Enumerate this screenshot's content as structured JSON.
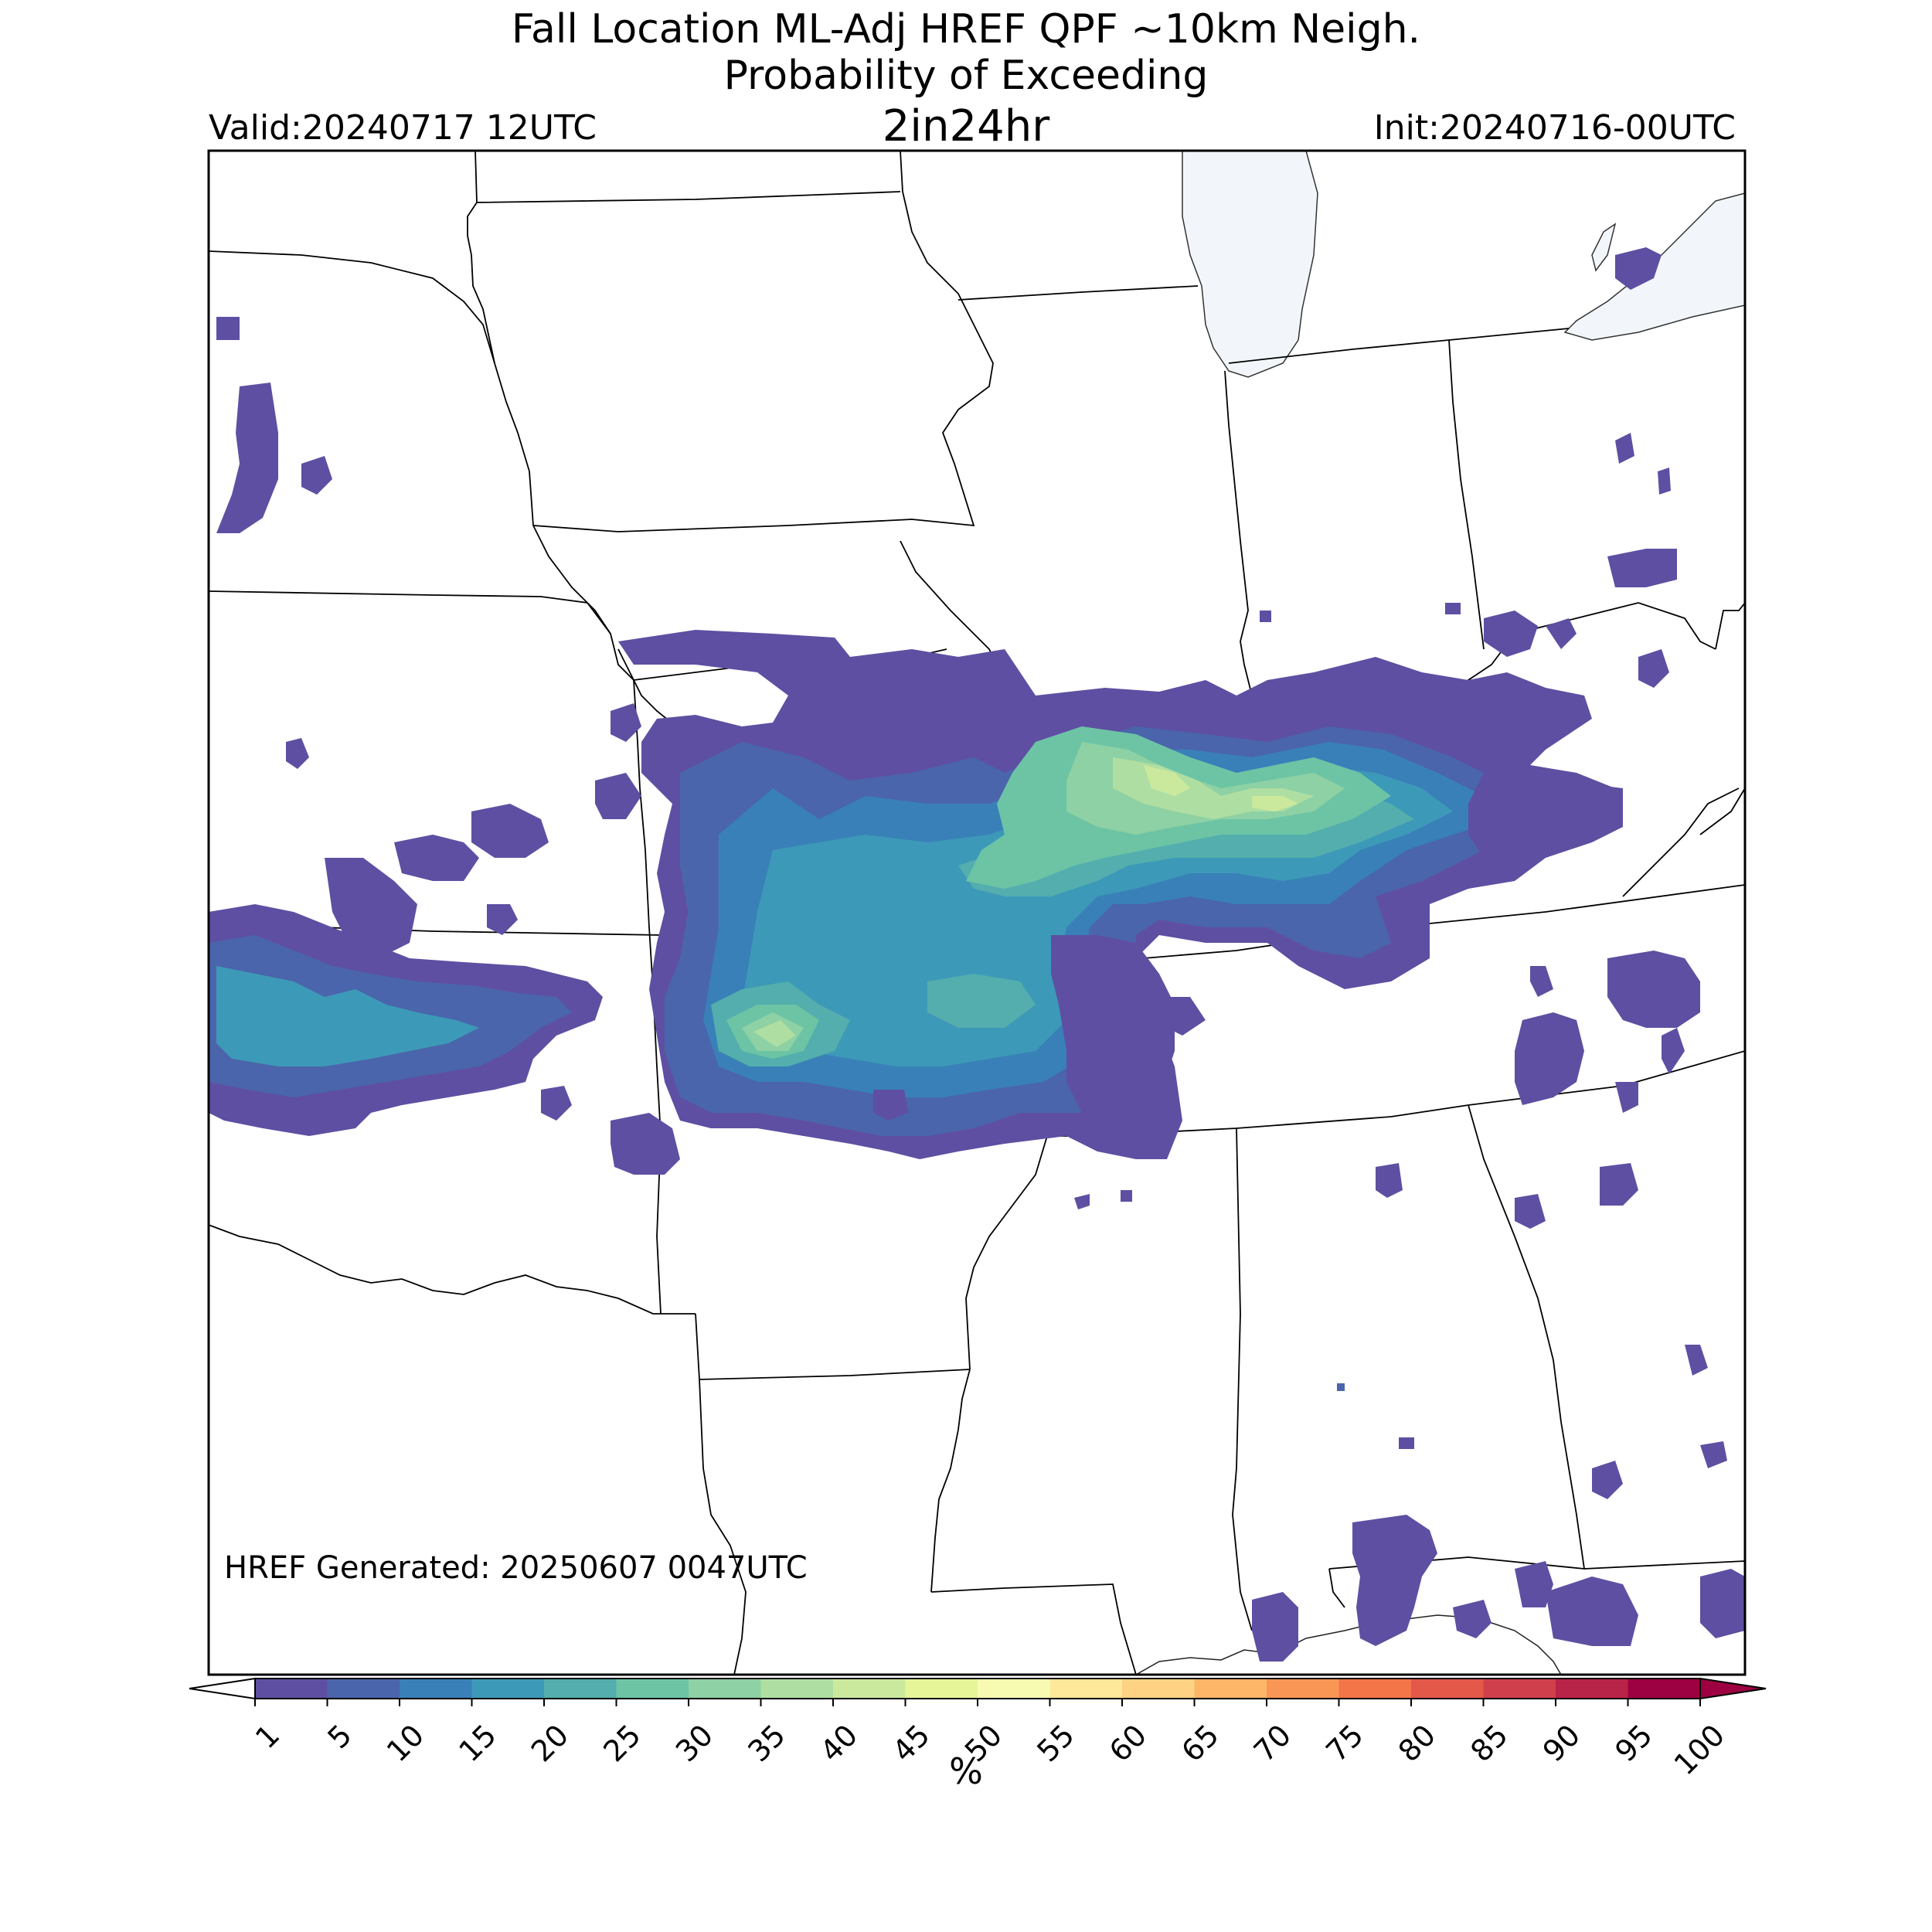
{
  "header": {
    "title_line1": "Fall Location ML-Adj HREF QPF ~10km Neigh.",
    "title_line2": "Probability of Exceeding",
    "title_line3": "2in24hr",
    "valid": "Valid:20240717 12UTC",
    "init": "Init:20240716-00UTC"
  },
  "footer": {
    "generated": "HREF Generated: 20250607 0047UTC"
  },
  "colorbar": {
    "units": "%",
    "ticks": [
      "1",
      "5",
      "10",
      "15",
      "20",
      "25",
      "30",
      "35",
      "40",
      "45",
      "50",
      "55",
      "60",
      "65",
      "70",
      "75",
      "80",
      "85",
      "90",
      "95",
      "100"
    ],
    "colors": [
      "#5e4fa2",
      "#4a65ab",
      "#3980b8",
      "#3d99b8",
      "#53aead",
      "#6dc4a5",
      "#8dd1a4",
      "#afdea3",
      "#cbe99d",
      "#e6f598",
      "#f7fbb2",
      "#fee89a",
      "#fdd282",
      "#fdb668",
      "#f99656",
      "#f47548",
      "#e35848",
      "#d0404c",
      "#b82348",
      "#9e0142"
    ],
    "under_color": "#ffffff",
    "over_color": "#9e0142"
  },
  "map": {
    "lake_color": "#f2f6fb",
    "border_color": "#000000"
  }
}
